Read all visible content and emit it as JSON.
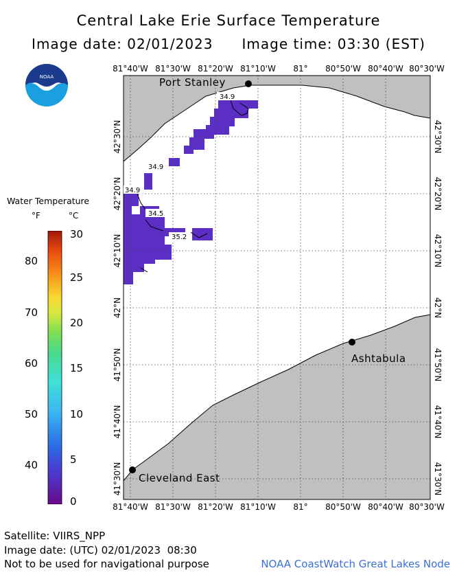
{
  "header": {
    "title": "Central Lake Erie Surface Temperature",
    "image_date": "Image date: 02/01/2023",
    "image_time": "Image time: 03:30 (EST)"
  },
  "logo": {
    "text": "NOAA",
    "icon": "noaa-logo-icon"
  },
  "map": {
    "lon_labels": [
      "81°40'W",
      "81°30'W",
      "81°20'W",
      "81°10'W",
      "81°",
      "80°50'W",
      "80°40'W",
      "80°30'W"
    ],
    "lat_labels": [
      "42°30'N",
      "42°20'N",
      "42°10'N",
      "42°N",
      "41°50'N",
      "41°40'N",
      "41°30'N"
    ],
    "places": [
      {
        "name": "Port Stanley"
      },
      {
        "name": "Ashtabula"
      },
      {
        "name": "Cleveland East"
      }
    ],
    "contour_labels": [
      "34.9",
      "34.9",
      "34.9",
      "34.5",
      "35.2"
    ],
    "colors": {
      "land": "#c0c0c0",
      "water": "#ffffff",
      "observed": "#5b2ec4",
      "grid": "#555555"
    }
  },
  "legend": {
    "title": "Water Temperature",
    "unit_f": "°F",
    "unit_c": "°C",
    "f_ticks": [
      "80",
      "70",
      "60",
      "50",
      "40"
    ],
    "c_ticks": [
      "30",
      "25",
      "20",
      "15",
      "10",
      "5",
      "0"
    ]
  },
  "footer": {
    "satellite": "Satellite: VIIRS_NPP",
    "utc_date": "Image date: (UTC) 02/01/2023  08:30",
    "disclaimer": "Not to be used for navigational purpose",
    "credit": "NOAA CoastWatch Great Lakes Node"
  }
}
